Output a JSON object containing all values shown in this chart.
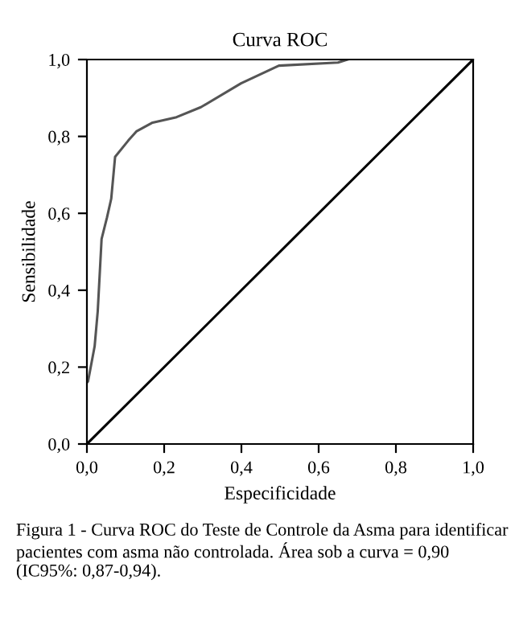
{
  "chart_data": {
    "type": "line",
    "title": "Curva ROC",
    "xlabel": "Especificidade",
    "ylabel": "Sensibilidade",
    "series": [
      {
        "color": "#555555",
        "x": [
          0.0,
          0.003,
          0.02,
          0.028,
          0.038,
          0.052,
          0.063,
          0.073,
          0.107,
          0.128,
          0.17,
          0.232,
          0.295,
          0.399,
          0.497,
          0.65,
          0.675
        ],
        "values": [
          0.16,
          0.163,
          0.254,
          0.345,
          0.533,
          0.589,
          0.638,
          0.747,
          0.789,
          0.813,
          0.836,
          0.85,
          0.876,
          0.938,
          0.984,
          0.992,
          1.0
        ]
      },
      {
        "color": "#000000",
        "x": [
          0.0,
          1.0
        ],
        "values": [
          0.0,
          1.0
        ]
      }
    ],
    "xlim": [
      0.0,
      1.0
    ],
    "ylim": [
      0.0,
      1.0
    ],
    "xticks": [
      {
        "value": 0.0,
        "label": "0,0"
      },
      {
        "value": 0.2,
        "label": "0,2"
      },
      {
        "value": 0.4,
        "label": "0,4"
      },
      {
        "value": 0.6,
        "label": "0,6"
      },
      {
        "value": 0.8,
        "label": "0,8"
      },
      {
        "value": 1.0,
        "label": "1,0"
      }
    ],
    "yticks": [
      {
        "value": 0.0,
        "label": "0,0"
      },
      {
        "value": 0.2,
        "label": "0,2"
      },
      {
        "value": 0.4,
        "label": "0,4"
      },
      {
        "value": 0.6,
        "label": "0,6"
      },
      {
        "value": 0.8,
        "label": "0,8"
      },
      {
        "value": 1.0,
        "label": "1,0"
      }
    ],
    "grid": false,
    "legend": false,
    "annotations": [
      "Figura 1 - Curva ROC do Teste de Controle da Asma para identificar pacientes com asma não controlada. Área sob a curva = 0,90 (IC95%: 0,87-0,94)."
    ]
  }
}
